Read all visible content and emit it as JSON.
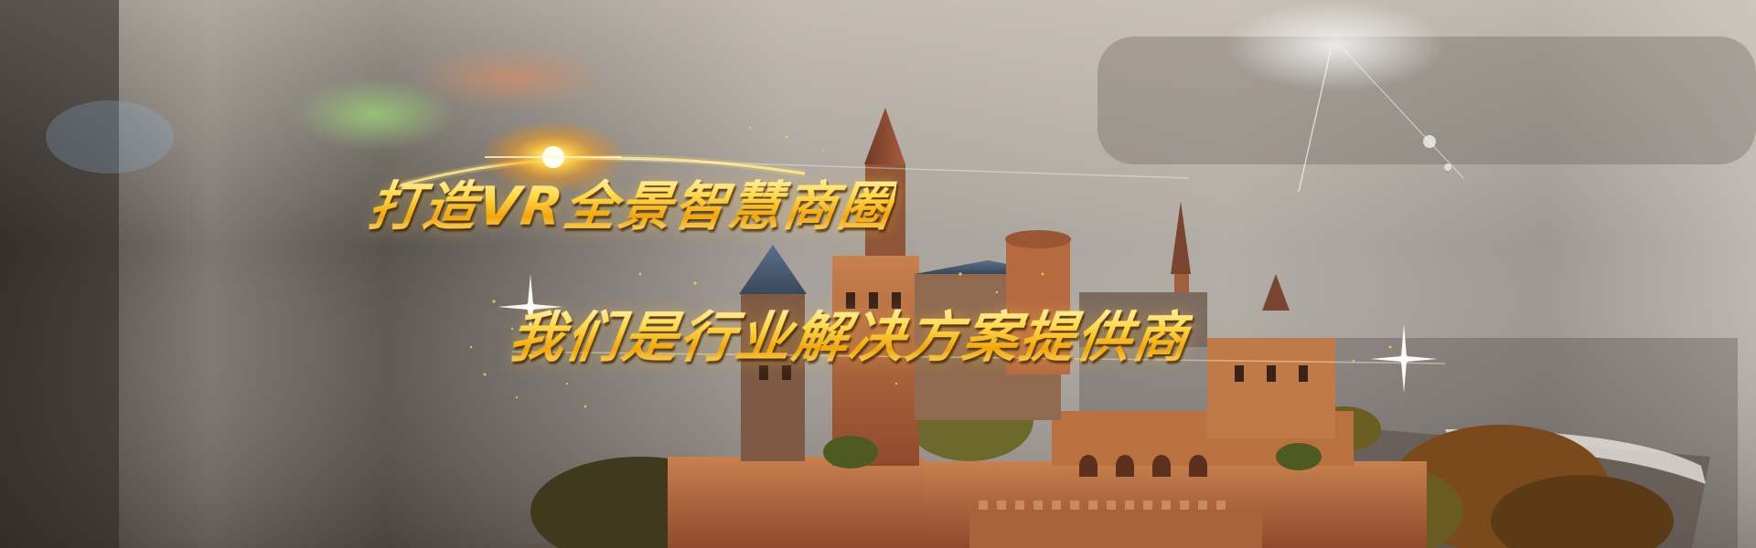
{
  "banner": {
    "headline": "打造VR全景智慧商圈",
    "subheadline": "我们是行业解决方案提供商"
  },
  "colors": {
    "headline_gold": "#f6c325",
    "headline_highlight": "#fff7c2",
    "headline_shadow": "#f0a60e",
    "background_blur": "#8f8a86",
    "castle_brick": "#b0623c",
    "foliage": "#6b4a22"
  },
  "icons": [
    "sparkle-star-icon",
    "sun-flare-icon"
  ]
}
